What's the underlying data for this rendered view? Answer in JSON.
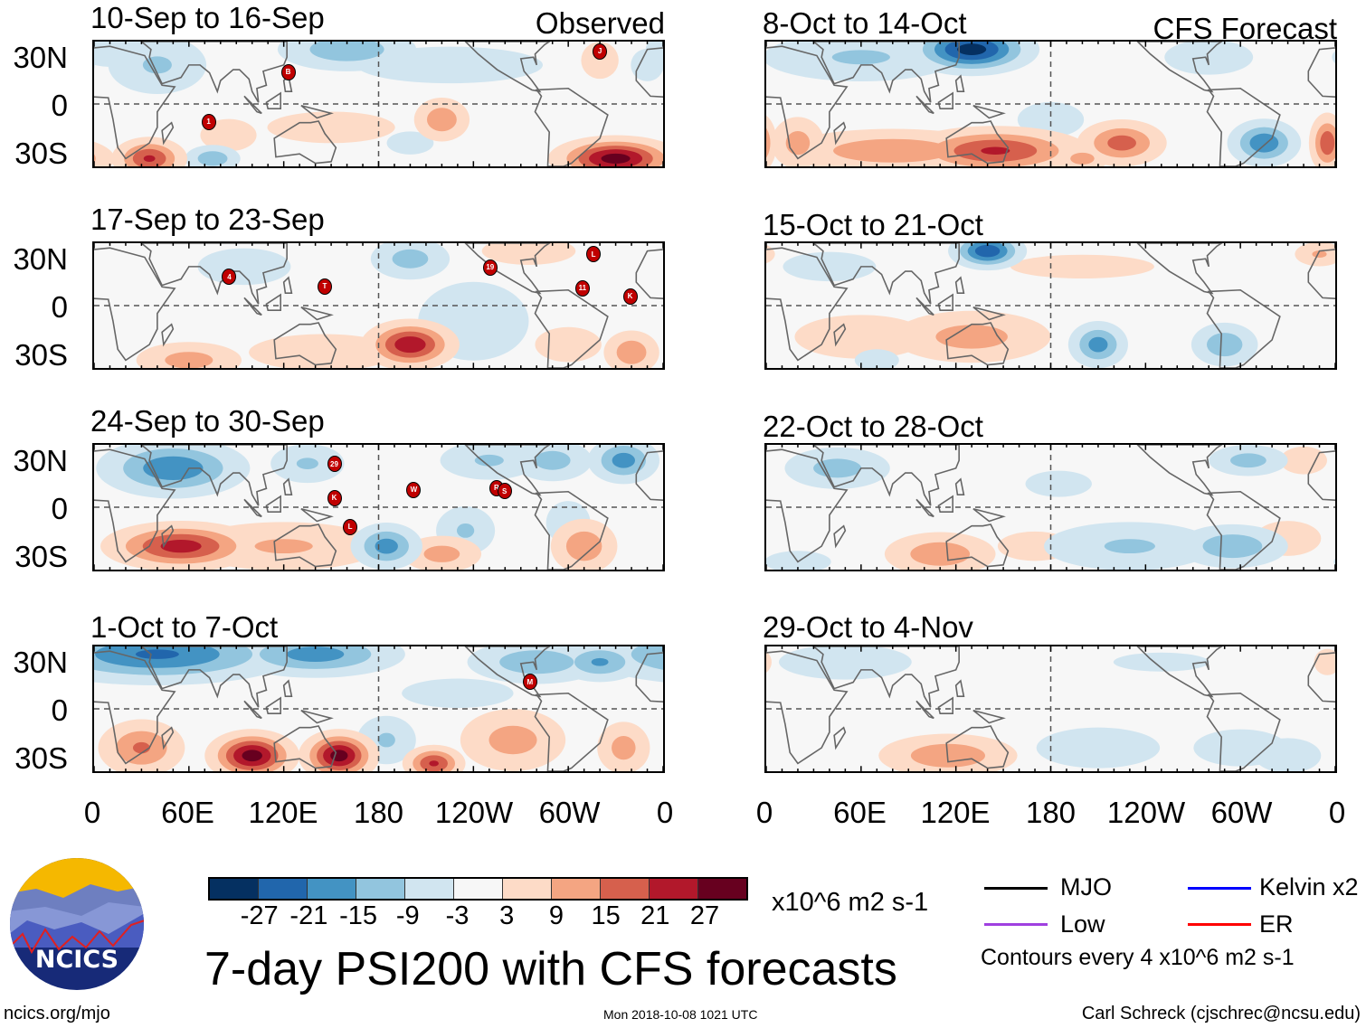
{
  "title": "7-day PSI200 with CFS forecasts",
  "units": "x10^6 m2 s-1",
  "contour_note": "Contours every 4 x10^6 m2 s-1",
  "footer": {
    "left": "ncics.org/mjo",
    "center": "Mon 2018-10-08 1021 UTC",
    "right": "Carl Schreck (cjschrec@ncsu.edu)"
  },
  "logo_text": "NCICS",
  "column_labels": {
    "observed": "Observed",
    "forecast": "CFS Forecast"
  },
  "lat_labels": [
    "30N",
    "0",
    "30S"
  ],
  "lon_labels": [
    "0",
    "60E",
    "120E",
    "180",
    "120W",
    "60W",
    "0"
  ],
  "legend": [
    {
      "label": "MJO",
      "color": "#000000"
    },
    {
      "label": "Kelvin x2",
      "color": "#0000ff"
    },
    {
      "label": "Low",
      "color": "#a040e0"
    },
    {
      "label": "ER",
      "color": "#ff0000"
    }
  ],
  "chart_data": {
    "type": "heatmap",
    "variable": "200-hPa streamfunction anomaly",
    "colorbar": {
      "labels": [
        "-27",
        "-21",
        "-15",
        "-9",
        "-3",
        "3",
        "9",
        "15",
        "21",
        "27"
      ],
      "colors": [
        "#053061",
        "#2166ac",
        "#4393c3",
        "#92c5de",
        "#d1e5f0",
        "#f7f7f7",
        "#fddbc7",
        "#f4a582",
        "#d6604d",
        "#b2182b",
        "#67001f"
      ]
    },
    "lon_range": [
      0,
      360
    ],
    "lat_range": [
      -40,
      40
    ],
    "panels": [
      {
        "title": "10-Sep to 16-Sep",
        "column": "observed",
        "anomalies": [
          [
            40,
            25,
            -10,
            20,
            12
          ],
          [
            10,
            35,
            -8,
            15,
            8
          ],
          [
            160,
            35,
            -14,
            25,
            8
          ],
          [
            225,
            25,
            -6,
            50,
            10
          ],
          [
            35,
            -35,
            22,
            12,
            7
          ],
          [
            85,
            -20,
            9,
            12,
            7
          ],
          [
            75,
            -35,
            -14,
            10,
            5
          ],
          [
            220,
            -10,
            14,
            10,
            8
          ],
          [
            330,
            -35,
            30,
            20,
            7
          ],
          [
            320,
            28,
            9,
            8,
            8
          ],
          [
            350,
            25,
            -7,
            8,
            8
          ],
          [
            150,
            -15,
            5,
            40,
            10
          ],
          [
            200,
            -25,
            -9,
            10,
            5
          ]
        ],
        "storms": [
          {
            "label": "1",
            "lon": 72,
            "lat": -10
          },
          {
            "label": "B",
            "lon": 122,
            "lat": 21
          },
          {
            "label": "J",
            "lon": 318,
            "lat": 34
          }
        ]
      },
      {
        "title": "17-Sep to 23-Sep",
        "column": "observed",
        "anomalies": [
          [
            60,
            -35,
            12,
            20,
            7
          ],
          [
            145,
            -30,
            6,
            40,
            10
          ],
          [
            200,
            -25,
            26,
            15,
            8
          ],
          [
            240,
            -10,
            -8,
            25,
            18
          ],
          [
            200,
            30,
            -12,
            15,
            8
          ],
          [
            275,
            35,
            9,
            20,
            6
          ],
          [
            340,
            -30,
            14,
            10,
            8
          ],
          [
            95,
            25,
            -6,
            25,
            10
          ],
          [
            300,
            -25,
            8,
            15,
            8
          ]
        ],
        "storms": [
          {
            "label": "4",
            "lon": 85,
            "lat": 19
          },
          {
            "label": "T",
            "lon": 145,
            "lat": 13
          },
          {
            "label": "19",
            "lon": 249,
            "lat": 25
          },
          {
            "label": "L",
            "lon": 314,
            "lat": 33
          },
          {
            "label": "11",
            "lon": 307,
            "lat": 12
          },
          {
            "label": "K",
            "lon": 337,
            "lat": 7
          }
        ]
      },
      {
        "title": "24-Sep to 30-Sep",
        "column": "observed",
        "anomalies": [
          [
            50,
            25,
            -20,
            25,
            10
          ],
          [
            135,
            28,
            -10,
            15,
            8
          ],
          [
            250,
            30,
            -10,
            20,
            8
          ],
          [
            335,
            30,
            -18,
            12,
            8
          ],
          [
            290,
            30,
            -12,
            15,
            8
          ],
          [
            55,
            -25,
            24,
            25,
            8
          ],
          [
            120,
            -25,
            10,
            40,
            10
          ],
          [
            185,
            -25,
            -18,
            12,
            8
          ],
          [
            235,
            -15,
            -10,
            12,
            10
          ],
          [
            220,
            -30,
            12,
            15,
            7
          ],
          [
            310,
            -25,
            14,
            12,
            10
          ],
          [
            300,
            -10,
            -8,
            10,
            10
          ]
        ],
        "storms": [
          {
            "label": "29",
            "lon": 151,
            "lat": 28
          },
          {
            "label": "K",
            "lon": 151,
            "lat": 7
          },
          {
            "label": "L",
            "lon": 161,
            "lat": -11
          },
          {
            "label": "W",
            "lon": 201,
            "lat": 12
          },
          {
            "label": "R",
            "lon": 253,
            "lat": 13
          },
          {
            "label": "S",
            "lon": 258,
            "lat": 11
          }
        ]
      },
      {
        "title": "1-Oct to 7-Oct",
        "column": "observed",
        "anomalies": [
          [
            40,
            35,
            -22,
            45,
            10
          ],
          [
            140,
            35,
            -18,
            30,
            8
          ],
          [
            280,
            30,
            -14,
            25,
            8
          ],
          [
            320,
            30,
            -16,
            15,
            7
          ],
          [
            100,
            -30,
            30,
            14,
            8
          ],
          [
            155,
            -30,
            30,
            12,
            8
          ],
          [
            30,
            -25,
            16,
            15,
            10
          ],
          [
            215,
            -35,
            22,
            10,
            6
          ],
          [
            265,
            -20,
            12,
            20,
            12
          ],
          [
            335,
            -25,
            12,
            10,
            10
          ],
          [
            185,
            -20,
            -10,
            12,
            10
          ],
          [
            230,
            10,
            -6,
            30,
            8
          ]
        ],
        "storms": [
          {
            "label": "M",
            "lon": 274,
            "lat": 18
          }
        ]
      },
      {
        "title": "8-Oct to 14-Oct",
        "column": "forecast",
        "anomalies": [
          [
            130,
            35,
            -30,
            20,
            8
          ],
          [
            60,
            30,
            -10,
            40,
            10
          ],
          [
            280,
            30,
            -8,
            20,
            8
          ],
          [
            315,
            -25,
            -20,
            12,
            8
          ],
          [
            145,
            -30,
            22,
            30,
            8
          ],
          [
            80,
            -30,
            14,
            40,
            8
          ],
          [
            225,
            -25,
            18,
            15,
            8
          ],
          [
            200,
            -35,
            12,
            10,
            5
          ],
          [
            355,
            -25,
            20,
            6,
            10
          ],
          [
            20,
            -25,
            12,
            10,
            10
          ],
          [
            180,
            -10,
            -8,
            15,
            8
          ]
        ],
        "storms": []
      },
      {
        "title": "15-Oct to 21-Oct",
        "column": "forecast",
        "anomalies": [
          [
            140,
            35,
            -26,
            12,
            6
          ],
          [
            350,
            33,
            10,
            10,
            5
          ],
          [
            210,
            -25,
            -18,
            10,
            8
          ],
          [
            290,
            -25,
            -14,
            12,
            8
          ],
          [
            130,
            -20,
            12,
            30,
            10
          ],
          [
            60,
            -20,
            8,
            30,
            10
          ],
          [
            40,
            25,
            -6,
            25,
            8
          ],
          [
            200,
            25,
            4,
            60,
            10
          ],
          [
            70,
            -35,
            -8,
            10,
            5
          ]
        ],
        "storms": []
      },
      {
        "title": "22-Oct to 28-Oct",
        "column": "forecast",
        "anomalies": [
          [
            45,
            25,
            -12,
            20,
            8
          ],
          [
            185,
            15,
            -8,
            15,
            6
          ],
          [
            305,
            30,
            -12,
            15,
            6
          ],
          [
            340,
            30,
            9,
            10,
            6
          ],
          [
            230,
            -25,
            -10,
            35,
            10
          ],
          [
            295,
            -25,
            -14,
            20,
            8
          ],
          [
            110,
            -30,
            14,
            20,
            8
          ],
          [
            170,
            -25,
            6,
            20,
            8
          ],
          [
            20,
            -35,
            -8,
            15,
            5
          ],
          [
            330,
            -20,
            8,
            15,
            8
          ]
        ],
        "storms": []
      },
      {
        "title": "29-Oct to 4-Nov",
        "column": "forecast",
        "anomalies": [
          [
            50,
            30,
            -8,
            30,
            8
          ],
          [
            115,
            -30,
            14,
            25,
            8
          ],
          [
            210,
            -25,
            -7,
            30,
            10
          ],
          [
            300,
            -25,
            -9,
            20,
            8
          ],
          [
            355,
            30,
            8,
            6,
            6
          ],
          [
            330,
            -30,
            -8,
            15,
            8
          ],
          [
            250,
            30,
            -5,
            30,
            6
          ]
        ],
        "storms": []
      }
    ]
  }
}
